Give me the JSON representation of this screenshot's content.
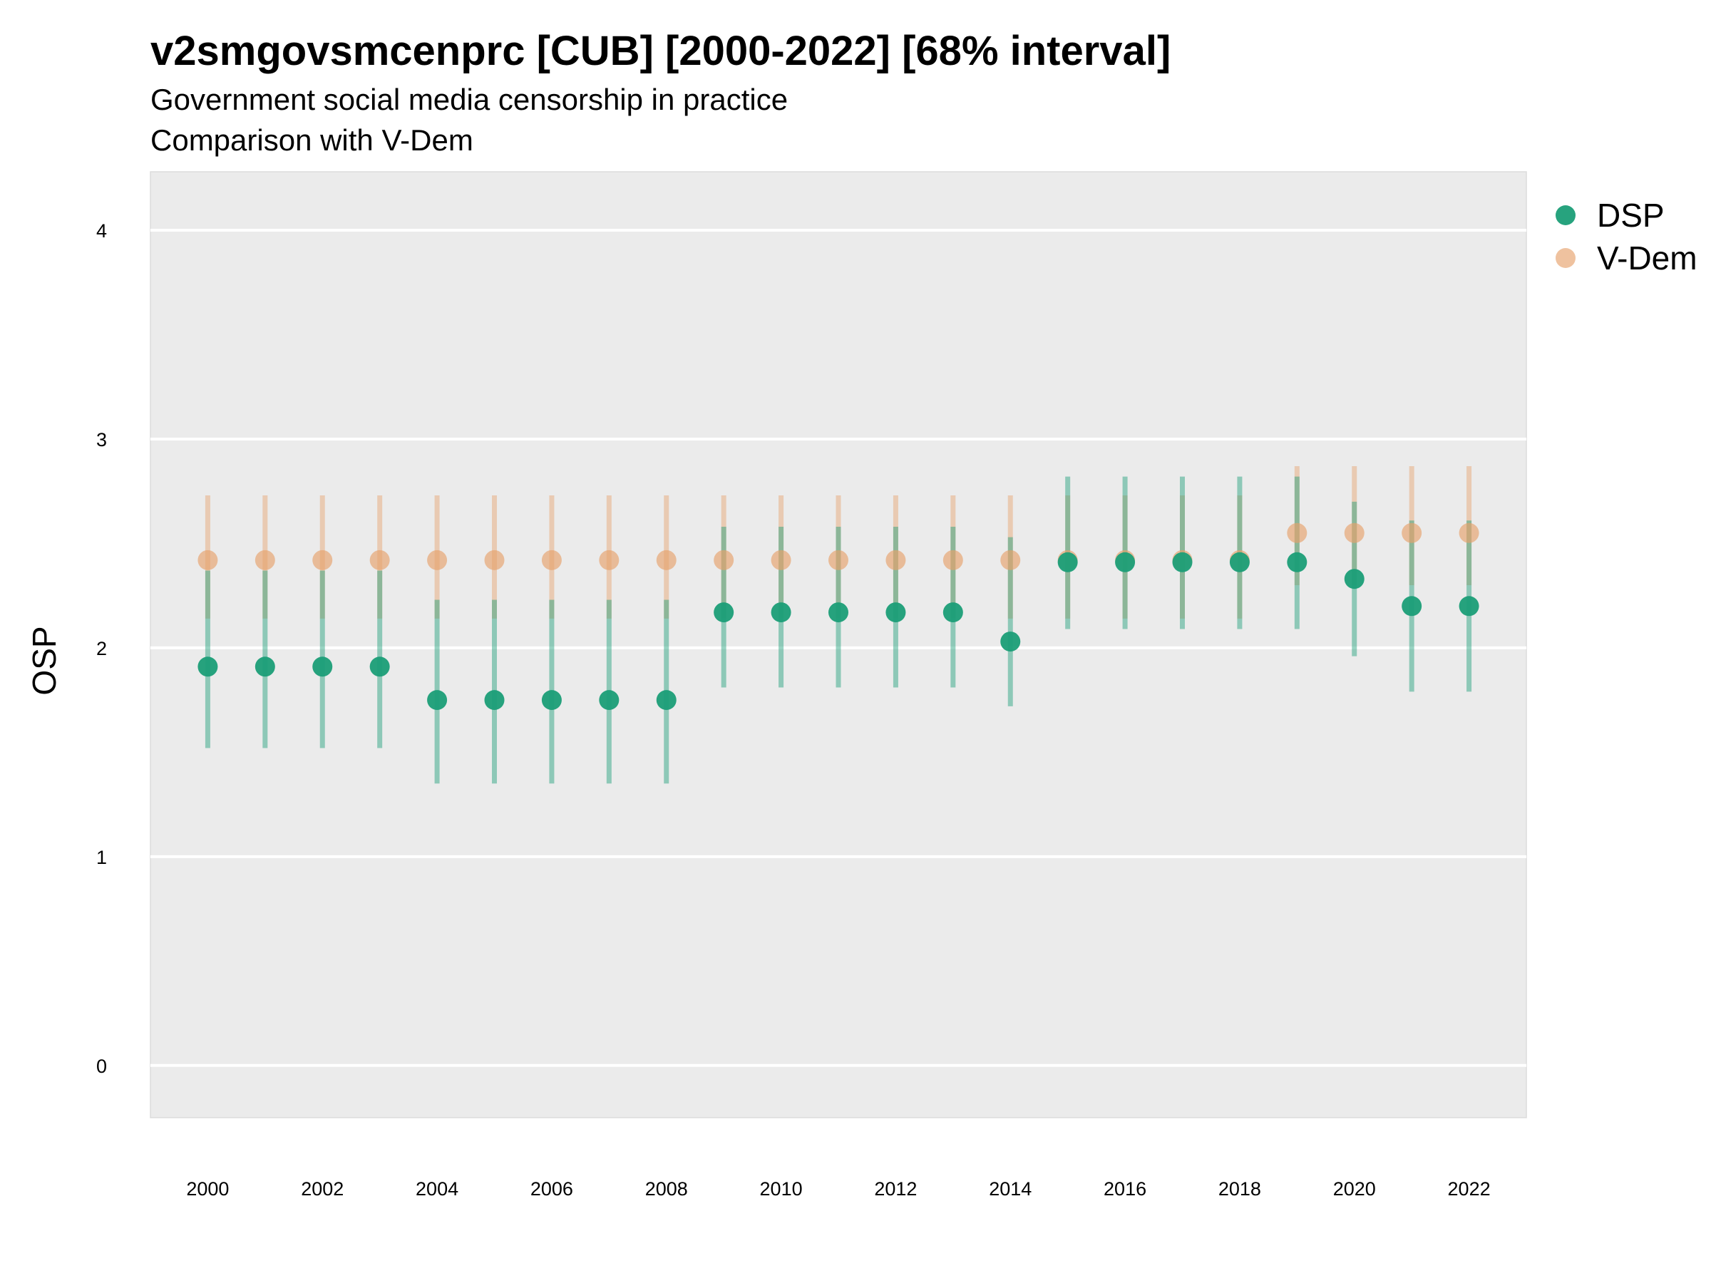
{
  "chart_data": {
    "type": "scatter",
    "title": "v2smgovsmcenprc [CUB] [2000-2022] [68% interval]",
    "subtitle": [
      "Government social media censorship in practice",
      "Comparison with V-Dem"
    ],
    "xlabel": "",
    "ylabel": "OSP",
    "x": [
      2000,
      2001,
      2002,
      2003,
      2004,
      2005,
      2006,
      2007,
      2008,
      2009,
      2010,
      2011,
      2012,
      2013,
      2014,
      2015,
      2016,
      2017,
      2018,
      2019,
      2020,
      2021,
      2022
    ],
    "x_ticks": [
      "2000",
      "2002",
      "2004",
      "2006",
      "2008",
      "2010",
      "2012",
      "2014",
      "2016",
      "2018",
      "2020",
      "2022"
    ],
    "y_ticks": [
      "0",
      "1",
      "2",
      "3",
      "4"
    ],
    "xlim": [
      1999,
      2023
    ],
    "ylim": [
      -0.25,
      4.28
    ],
    "grid": true,
    "legend_position": "right",
    "series": [
      {
        "name": "DSP",
        "color": "#1b9e77",
        "values": [
          1.91,
          1.91,
          1.91,
          1.91,
          1.75,
          1.75,
          1.75,
          1.75,
          1.75,
          2.17,
          2.17,
          2.17,
          2.17,
          2.17,
          2.03,
          2.41,
          2.41,
          2.41,
          2.41,
          2.41,
          2.33,
          2.2,
          2.2
        ],
        "lower": [
          1.52,
          1.52,
          1.52,
          1.52,
          1.35,
          1.35,
          1.35,
          1.35,
          1.35,
          1.81,
          1.81,
          1.81,
          1.81,
          1.81,
          1.72,
          2.09,
          2.09,
          2.09,
          2.09,
          2.09,
          1.96,
          1.79,
          1.79
        ],
        "upper": [
          2.37,
          2.37,
          2.37,
          2.37,
          2.23,
          2.23,
          2.23,
          2.23,
          2.23,
          2.58,
          2.58,
          2.58,
          2.58,
          2.58,
          2.53,
          2.82,
          2.82,
          2.82,
          2.82,
          2.82,
          2.7,
          2.61,
          2.61
        ]
      },
      {
        "name": "V-Dem",
        "color": "#e7a26c",
        "values": [
          2.42,
          2.42,
          2.42,
          2.42,
          2.42,
          2.42,
          2.42,
          2.42,
          2.42,
          2.42,
          2.42,
          2.42,
          2.42,
          2.42,
          2.42,
          2.42,
          2.42,
          2.42,
          2.42,
          2.55,
          2.55,
          2.55,
          2.55
        ],
        "lower": [
          2.14,
          2.14,
          2.14,
          2.14,
          2.14,
          2.14,
          2.14,
          2.14,
          2.14,
          2.14,
          2.14,
          2.14,
          2.14,
          2.14,
          2.14,
          2.14,
          2.14,
          2.14,
          2.14,
          2.3,
          2.3,
          2.3,
          2.3
        ],
        "upper": [
          2.73,
          2.73,
          2.73,
          2.73,
          2.73,
          2.73,
          2.73,
          2.73,
          2.73,
          2.73,
          2.73,
          2.73,
          2.73,
          2.73,
          2.73,
          2.73,
          2.73,
          2.73,
          2.73,
          2.87,
          2.87,
          2.87,
          2.87
        ]
      }
    ]
  }
}
